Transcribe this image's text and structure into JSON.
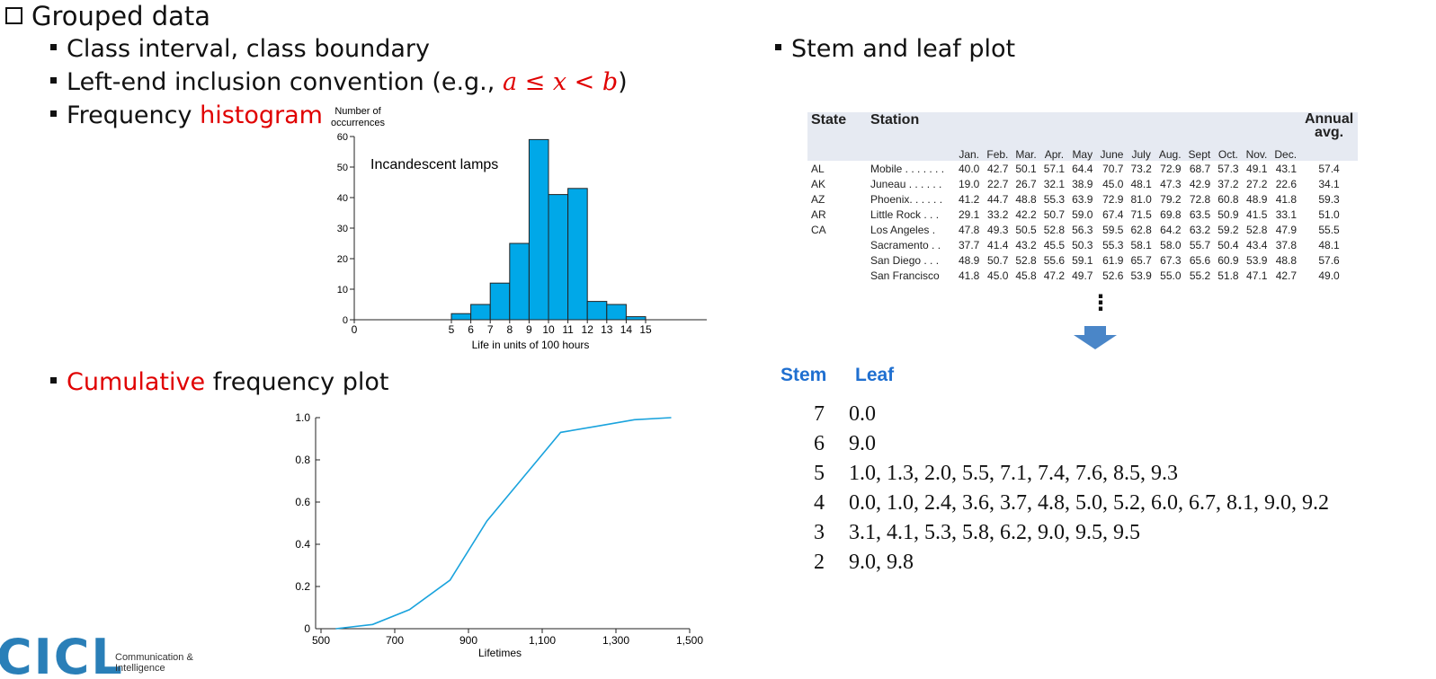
{
  "heading": "Grouped data",
  "bullets": {
    "class_interval": "Class interval, class boundary",
    "left_end_prefix": "Left-end inclusion convention (e.g., ",
    "left_end_math": "a ≤ x < b",
    "left_end_suffix": ")",
    "freq_prefix": "Frequency ",
    "freq_red": "histogram",
    "cumulative_red": "Cumulative",
    "cumulative_rest": " frequency plot",
    "stem_leaf": "Stem and leaf plot"
  },
  "histogram": {
    "ylabel_line1": "Number of",
    "ylabel_line2": "occurrences",
    "xlabel": "Life in units of 100 hours",
    "annotation": "Incandescent lamps",
    "color": "#00a8e8"
  },
  "cumulative": {
    "xlabel": "Lifetimes",
    "color": "#1aa3dd"
  },
  "chart_data": [
    {
      "type": "bar",
      "categories": [
        "5",
        "6",
        "7",
        "8",
        "9",
        "10",
        "11",
        "12",
        "13",
        "14"
      ],
      "bins": [
        [
          5,
          6
        ],
        [
          6,
          7
        ],
        [
          7,
          8
        ],
        [
          8,
          9
        ],
        [
          9,
          10
        ],
        [
          10,
          11
        ],
        [
          11,
          12
        ],
        [
          12,
          13
        ],
        [
          13,
          14
        ],
        [
          14,
          15
        ]
      ],
      "values": [
        2,
        5,
        12,
        25,
        59,
        41,
        43,
        6,
        5,
        1
      ],
      "xticks": [
        "0",
        "5",
        "6",
        "7",
        "8",
        "9",
        "10",
        "11",
        "12",
        "13",
        "14",
        "15"
      ],
      "yticks": [
        "0",
        "10",
        "20",
        "30",
        "40",
        "50",
        "60"
      ],
      "xlabel": "Life in units of 100 hours",
      "ylabel": "Number of occurrences",
      "ylim": [
        0,
        60
      ],
      "title": ""
    },
    {
      "type": "line",
      "x": [
        540,
        640,
        740,
        850,
        950,
        1050,
        1150,
        1250,
        1350,
        1450
      ],
      "y": [
        0.0,
        0.02,
        0.09,
        0.23,
        0.51,
        0.72,
        0.93,
        0.96,
        0.99,
        1.0
      ],
      "xticks": [
        "500",
        "700",
        "900",
        "1,100",
        "1,300",
        "1,500"
      ],
      "yticks": [
        "0",
        "0.2",
        "0.4",
        "0.6",
        "0.8",
        "1.0"
      ],
      "xlim": [
        500,
        1500
      ],
      "ylim": [
        0,
        1.0
      ],
      "xlabel": "Lifetimes",
      "ylabel": "",
      "title": ""
    }
  ],
  "table": {
    "h_state": "State",
    "h_station": "Station",
    "h_annual_1": "Annual",
    "h_annual_2": "avg.",
    "months": [
      "Jan.",
      "Feb.",
      "Mar.",
      "Apr.",
      "May",
      "June",
      "July",
      "Aug.",
      "Sept",
      "Oct.",
      "Nov.",
      "Dec."
    ],
    "rows": [
      {
        "state": "AL",
        "station": "Mobile . . . . . . .",
        "vals": [
          "40.0",
          "42.7",
          "50.1",
          "57.1",
          "64.4",
          "70.7",
          "73.2",
          "72.9",
          "68.7",
          "57.3",
          "49.1",
          "43.1"
        ],
        "avg": "57.4"
      },
      {
        "state": "AK",
        "station": "Juneau . . . . . .",
        "vals": [
          "19.0",
          "22.7",
          "26.7",
          "32.1",
          "38.9",
          "45.0",
          "48.1",
          "47.3",
          "42.9",
          "37.2",
          "27.2",
          "22.6"
        ],
        "avg": "34.1"
      },
      {
        "state": "AZ",
        "station": "Phoenix. . . . . .",
        "vals": [
          "41.2",
          "44.7",
          "48.8",
          "55.3",
          "63.9",
          "72.9",
          "81.0",
          "79.2",
          "72.8",
          "60.8",
          "48.9",
          "41.8"
        ],
        "avg": "59.3"
      },
      {
        "state": "AR",
        "station": "Little Rock . . .",
        "vals": [
          "29.1",
          "33.2",
          "42.2",
          "50.7",
          "59.0",
          "67.4",
          "71.5",
          "69.8",
          "63.5",
          "50.9",
          "41.5",
          "33.1"
        ],
        "avg": "51.0"
      },
      {
        "state": "CA",
        "station": "Los Angeles .",
        "vals": [
          "47.8",
          "49.3",
          "50.5",
          "52.8",
          "56.3",
          "59.5",
          "62.8",
          "64.2",
          "63.2",
          "59.2",
          "52.8",
          "47.9"
        ],
        "avg": "55.5"
      },
      {
        "state": "",
        "station": "Sacramento . .",
        "vals": [
          "37.7",
          "41.4",
          "43.2",
          "45.5",
          "50.3",
          "55.3",
          "58.1",
          "58.0",
          "55.7",
          "50.4",
          "43.4",
          "37.8"
        ],
        "avg": "48.1"
      },
      {
        "state": "",
        "station": "San Diego . . .",
        "vals": [
          "48.9",
          "50.7",
          "52.8",
          "55.6",
          "59.1",
          "61.9",
          "65.7",
          "67.3",
          "65.6",
          "60.9",
          "53.9",
          "48.8"
        ],
        "avg": "57.6"
      },
      {
        "state": "",
        "station": "San Francisco",
        "vals": [
          "41.8",
          "45.0",
          "45.8",
          "47.2",
          "49.7",
          "52.6",
          "53.9",
          "55.0",
          "55.2",
          "51.8",
          "47.1",
          "42.7"
        ],
        "avg": "49.0"
      }
    ],
    "ellipsis": "⋮",
    "arrow_color": "#4a86c8"
  },
  "stem_leaf": {
    "h_stem": "Stem",
    "h_leaf": "Leaf",
    "rows": [
      {
        "stem": "7",
        "leaf": "0.0"
      },
      {
        "stem": "6",
        "leaf": "9.0"
      },
      {
        "stem": "5",
        "leaf": "1.0, 1.3, 2.0, 5.5, 7.1, 7.4, 7.6, 8.5, 9.3"
      },
      {
        "stem": "4",
        "leaf": "0.0, 1.0, 2.4, 3.6, 3.7, 4.8, 5.0, 5.2, 6.0, 6.7, 8.1, 9.0, 9.2"
      },
      {
        "stem": "3",
        "leaf": "3.1, 4.1, 5.3, 5.8, 6.2, 9.0, 9.5, 9.5"
      },
      {
        "stem": "2",
        "leaf": "9.0, 9.8"
      }
    ]
  },
  "logo": {
    "mark": "CICL",
    "text": "Communication & Intelligence",
    "color": "#2a7fb8"
  }
}
